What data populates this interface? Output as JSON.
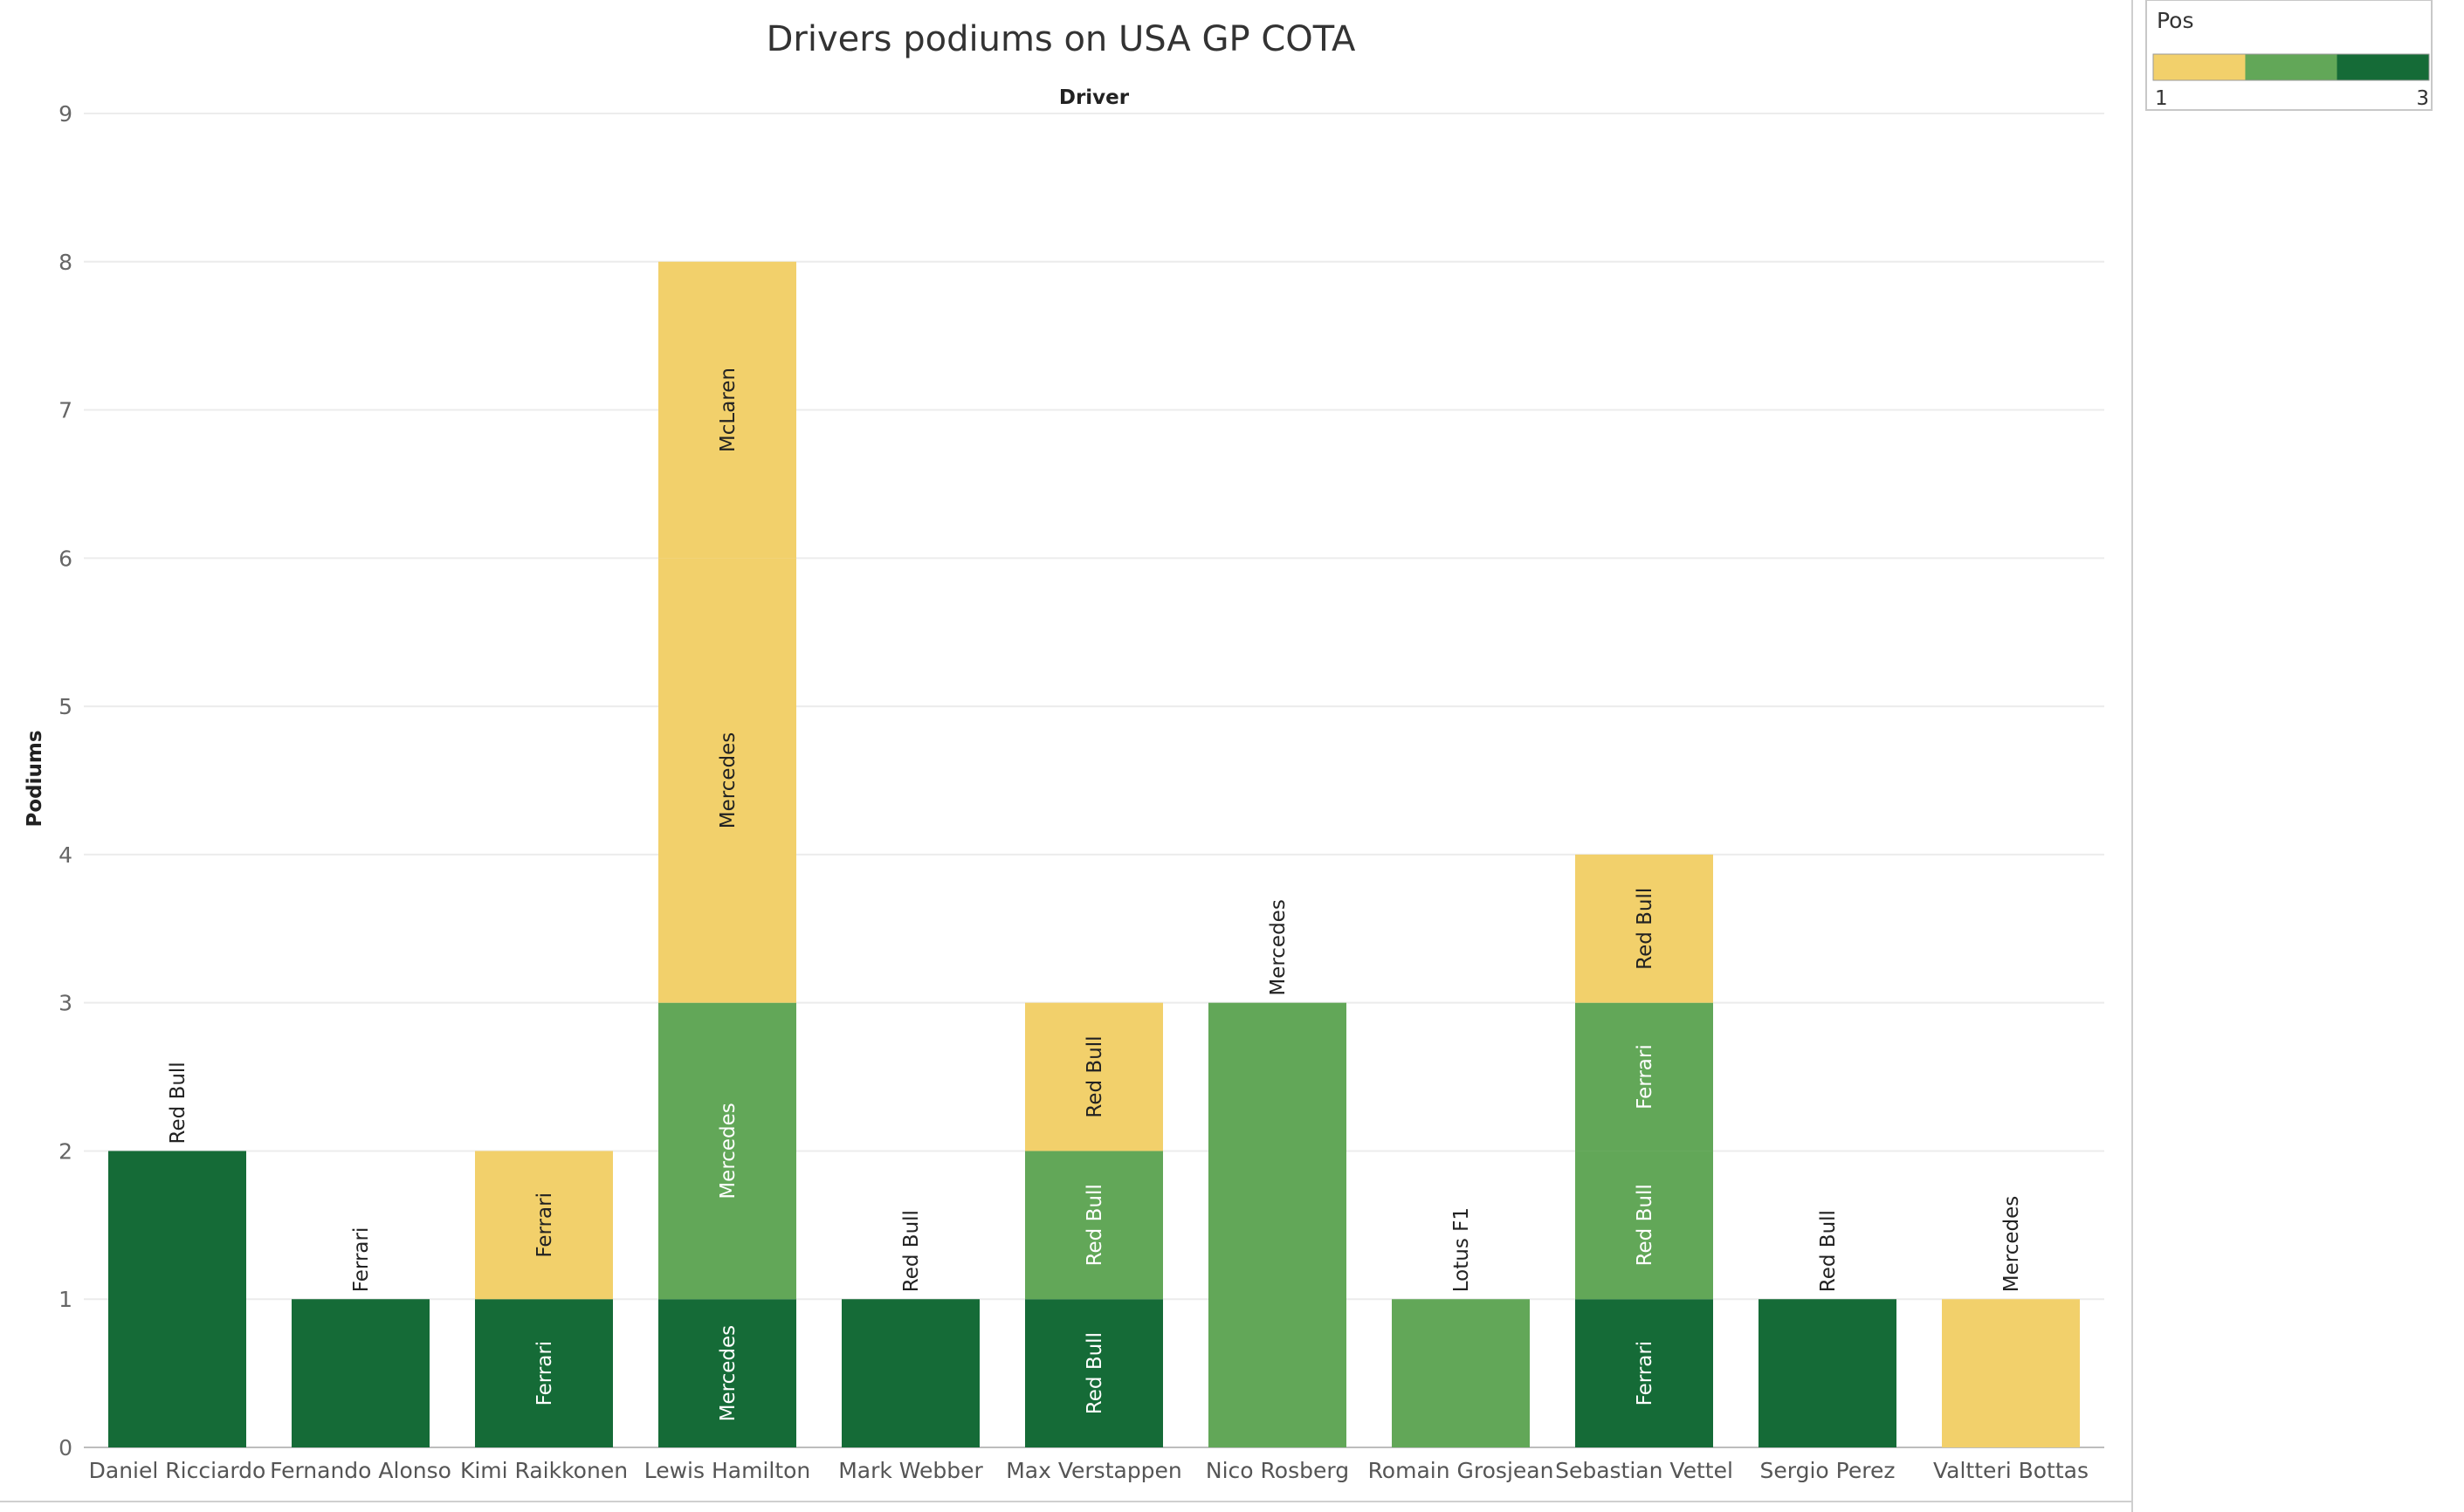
{
  "chart_data": {
    "type": "bar",
    "stacked": true,
    "title": "Drivers podiums on USA GP COTA",
    "xlabel": "Driver",
    "ylabel": "Podiums",
    "ylim": [
      0,
      9
    ],
    "yticks": [
      0,
      1,
      2,
      3,
      4,
      5,
      6,
      7,
      8,
      9
    ],
    "grid": true,
    "categories": [
      "Daniel Ricciardo",
      "Fernando Alonso",
      "Kimi Raikkonen",
      "Lewis Hamilton",
      "Mark Webber",
      "Max Verstappen",
      "Nico Rosberg",
      "Romain Grosjean",
      "Sebastian Vettel",
      "Sergio Perez",
      "Valtteri Bottas"
    ],
    "stacks": [
      [
        {
          "pos": 3,
          "value": 2,
          "team": "Red Bull"
        }
      ],
      [
        {
          "pos": 3,
          "value": 1,
          "team": "Ferrari"
        }
      ],
      [
        {
          "pos": 3,
          "value": 1,
          "team": "Ferrari"
        },
        {
          "pos": 1,
          "value": 1,
          "team": "Ferrari"
        }
      ],
      [
        {
          "pos": 3,
          "value": 1,
          "team": "Mercedes"
        },
        {
          "pos": 2,
          "value": 2,
          "team": "Mercedes"
        },
        {
          "pos": 1,
          "value": 3,
          "team": "Mercedes"
        },
        {
          "pos": 1,
          "value": 2,
          "team": "McLaren"
        }
      ],
      [
        {
          "pos": 3,
          "value": 1,
          "team": "Red Bull"
        }
      ],
      [
        {
          "pos": 3,
          "value": 1,
          "team": "Red Bull"
        },
        {
          "pos": 2,
          "value": 1,
          "team": "Red Bull"
        },
        {
          "pos": 1,
          "value": 1,
          "team": "Red Bull"
        }
      ],
      [
        {
          "pos": 2,
          "value": 3,
          "team": "Mercedes"
        }
      ],
      [
        {
          "pos": 2,
          "value": 1,
          "team": "Lotus F1"
        }
      ],
      [
        {
          "pos": 3,
          "value": 1,
          "team": "Ferrari"
        },
        {
          "pos": 2,
          "value": 1,
          "team": "Red Bull"
        },
        {
          "pos": 2,
          "value": 1,
          "team": "Ferrari"
        },
        {
          "pos": 1,
          "value": 1,
          "team": "Red Bull"
        }
      ],
      [
        {
          "pos": 3,
          "value": 1,
          "team": "Red Bull"
        }
      ],
      [
        {
          "pos": 1,
          "value": 1,
          "team": "Mercedes"
        }
      ]
    ],
    "legend": {
      "title": "Pos",
      "min_label": "1",
      "max_label": "3",
      "colors": {
        "1": "#f2d06b",
        "2": "#62a758",
        "3": "#156b37"
      }
    }
  }
}
